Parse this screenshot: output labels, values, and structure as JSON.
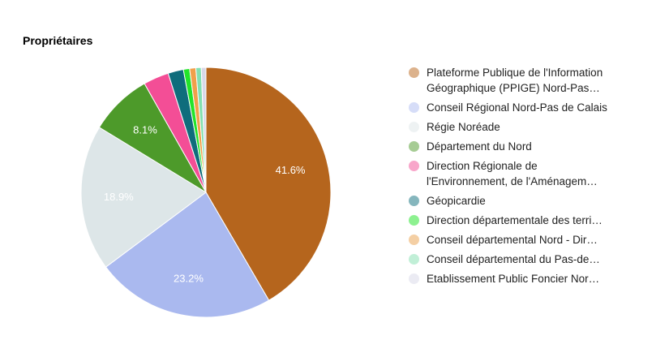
{
  "chart_data": {
    "type": "pie",
    "title": "Propriétaires",
    "legend_position": "right",
    "slices": [
      {
        "name": "Plateforme Publique de l'Information Géographique (PPIGE) Nord-Pas…",
        "value": 41.6,
        "label": "41.6%",
        "color": "#b5651d",
        "legend_color": "#dcb28c",
        "lines": 2
      },
      {
        "name": "Conseil Régional Nord-Pas de Calais",
        "value": 23.2,
        "label": "23.2%",
        "color": "#aab9ef",
        "legend_color": "#d6ddf8",
        "lines": 2
      },
      {
        "name": "Régie Noréade",
        "value": 18.9,
        "label": "18.9%",
        "color": "#dde6e8",
        "legend_color": "#eef2f3",
        "lines": 1
      },
      {
        "name": "Département du Nord",
        "value": 8.1,
        "label": "8.1%",
        "color": "#4d9a2a",
        "legend_color": "#a6cc94",
        "lines": 1
      },
      {
        "name": "Direction Régionale de l'Environnement, de l'Aménagem…",
        "value": 3.3,
        "label": "",
        "color": "#f34e96",
        "legend_color": "#f8a6ca",
        "lines": 2
      },
      {
        "name": "Géopicardie",
        "value": 2.0,
        "label": "",
        "color": "#0f6d7c",
        "legend_color": "#85b6bd",
        "lines": 1
      },
      {
        "name": "Direction départementale des terri…",
        "value": 0.8,
        "label": "",
        "color": "#22e42a",
        "legend_color": "#8df190",
        "lines": 1
      },
      {
        "name": "Conseil départemental Nord - Dir…",
        "value": 0.8,
        "label": "",
        "color": "#f1a04a",
        "legend_color": "#f4cfa4",
        "lines": 1
      },
      {
        "name": "Conseil départemental du Pas-de…",
        "value": 0.7,
        "label": "",
        "color": "#83e0b0",
        "legend_color": "#c1efd7",
        "lines": 1
      },
      {
        "name": "Etablissement Public Foncier Nor…",
        "value": 0.6,
        "label": "",
        "color": "#d8d8e8",
        "legend_color": "#ebebf3",
        "lines": 1
      }
    ]
  }
}
